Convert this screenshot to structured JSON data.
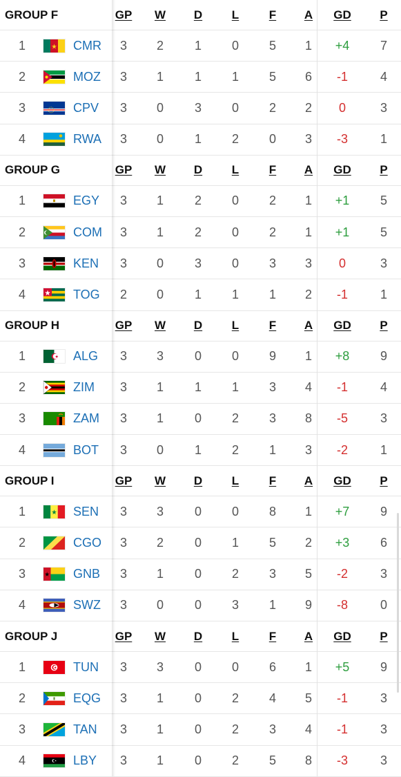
{
  "columns": {
    "gp": "GP",
    "w": "W",
    "d": "D",
    "l": "L",
    "f": "F",
    "a": "A",
    "gd": "GD",
    "p": "P"
  },
  "groups": [
    {
      "name": "GROUP F",
      "teams": [
        {
          "rank": "1",
          "flag": "cameroon-flag",
          "code": "CMR",
          "gp": "3",
          "w": "2",
          "d": "1",
          "l": "0",
          "f": "5",
          "a": "1",
          "gd": "+4",
          "p": "7"
        },
        {
          "rank": "2",
          "flag": "mozambique-flag",
          "code": "MOZ",
          "gp": "3",
          "w": "1",
          "d": "1",
          "l": "1",
          "f": "5",
          "a": "6",
          "gd": "-1",
          "p": "4"
        },
        {
          "rank": "3",
          "flag": "cape-verde-flag",
          "code": "CPV",
          "gp": "3",
          "w": "0",
          "d": "3",
          "l": "0",
          "f": "2",
          "a": "2",
          "gd": "0",
          "p": "3"
        },
        {
          "rank": "4",
          "flag": "rwanda-flag",
          "code": "RWA",
          "gp": "3",
          "w": "0",
          "d": "1",
          "l": "2",
          "f": "0",
          "a": "3",
          "gd": "-3",
          "p": "1"
        }
      ]
    },
    {
      "name": "GROUP G",
      "teams": [
        {
          "rank": "1",
          "flag": "egypt-flag",
          "code": "EGY",
          "gp": "3",
          "w": "1",
          "d": "2",
          "l": "0",
          "f": "2",
          "a": "1",
          "gd": "+1",
          "p": "5"
        },
        {
          "rank": "2",
          "flag": "comoros-flag",
          "code": "COM",
          "gp": "3",
          "w": "1",
          "d": "2",
          "l": "0",
          "f": "2",
          "a": "1",
          "gd": "+1",
          "p": "5"
        },
        {
          "rank": "3",
          "flag": "kenya-flag",
          "code": "KEN",
          "gp": "3",
          "w": "0",
          "d": "3",
          "l": "0",
          "f": "3",
          "a": "3",
          "gd": "0",
          "p": "3"
        },
        {
          "rank": "4",
          "flag": "togo-flag",
          "code": "TOG",
          "gp": "2",
          "w": "0",
          "d": "1",
          "l": "1",
          "f": "1",
          "a": "2",
          "gd": "-1",
          "p": "1"
        }
      ]
    },
    {
      "name": "GROUP H",
      "teams": [
        {
          "rank": "1",
          "flag": "algeria-flag",
          "code": "ALG",
          "gp": "3",
          "w": "3",
          "d": "0",
          "l": "0",
          "f": "9",
          "a": "1",
          "gd": "+8",
          "p": "9"
        },
        {
          "rank": "2",
          "flag": "zimbabwe-flag",
          "code": "ZIM",
          "gp": "3",
          "w": "1",
          "d": "1",
          "l": "1",
          "f": "3",
          "a": "4",
          "gd": "-1",
          "p": "4"
        },
        {
          "rank": "3",
          "flag": "zambia-flag",
          "code": "ZAM",
          "gp": "3",
          "w": "1",
          "d": "0",
          "l": "2",
          "f": "3",
          "a": "8",
          "gd": "-5",
          "p": "3"
        },
        {
          "rank": "4",
          "flag": "botswana-flag",
          "code": "BOT",
          "gp": "3",
          "w": "0",
          "d": "1",
          "l": "2",
          "f": "1",
          "a": "3",
          "gd": "-2",
          "p": "1"
        }
      ]
    },
    {
      "name": "GROUP I",
      "teams": [
        {
          "rank": "1",
          "flag": "senegal-flag",
          "code": "SEN",
          "gp": "3",
          "w": "3",
          "d": "0",
          "l": "0",
          "f": "8",
          "a": "1",
          "gd": "+7",
          "p": "9"
        },
        {
          "rank": "2",
          "flag": "congo-flag",
          "code": "CGO",
          "gp": "3",
          "w": "2",
          "d": "0",
          "l": "1",
          "f": "5",
          "a": "2",
          "gd": "+3",
          "p": "6"
        },
        {
          "rank": "3",
          "flag": "guinea-bissau-flag",
          "code": "GNB",
          "gp": "3",
          "w": "1",
          "d": "0",
          "l": "2",
          "f": "3",
          "a": "5",
          "gd": "-2",
          "p": "3"
        },
        {
          "rank": "4",
          "flag": "eswatini-flag",
          "code": "SWZ",
          "gp": "3",
          "w": "0",
          "d": "0",
          "l": "3",
          "f": "1",
          "a": "9",
          "gd": "-8",
          "p": "0"
        }
      ]
    },
    {
      "name": "GROUP J",
      "teams": [
        {
          "rank": "1",
          "flag": "tunisia-flag",
          "code": "TUN",
          "gp": "3",
          "w": "3",
          "d": "0",
          "l": "0",
          "f": "6",
          "a": "1",
          "gd": "+5",
          "p": "9"
        },
        {
          "rank": "2",
          "flag": "equatorial-guinea-flag",
          "code": "EQG",
          "gp": "3",
          "w": "1",
          "d": "0",
          "l": "2",
          "f": "4",
          "a": "5",
          "gd": "-1",
          "p": "3"
        },
        {
          "rank": "3",
          "flag": "tanzania-flag",
          "code": "TAN",
          "gp": "3",
          "w": "1",
          "d": "0",
          "l": "2",
          "f": "3",
          "a": "4",
          "gd": "-1",
          "p": "3"
        },
        {
          "rank": "4",
          "flag": "libya-flag",
          "code": "LBY",
          "gp": "3",
          "w": "1",
          "d": "0",
          "l": "2",
          "f": "5",
          "a": "8",
          "gd": "-3",
          "p": "3"
        }
      ]
    }
  ],
  "colors": {
    "team_link": "#1c6fb5",
    "gd_positive": "#2e9e3f",
    "gd_negative": "#d42f2f"
  }
}
